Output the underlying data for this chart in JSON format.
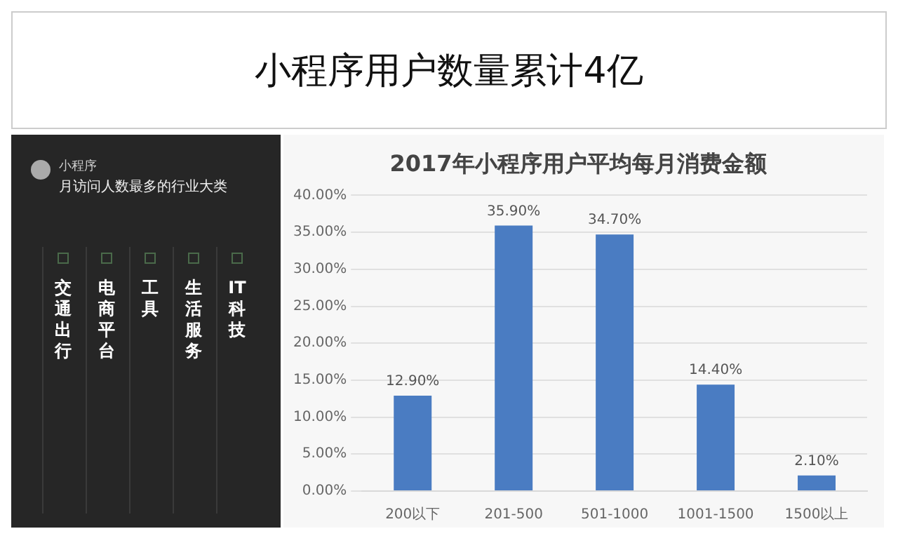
{
  "chart_data": {
    "type": "bar",
    "title": "小程序用户数量累计4亿",
    "subtitle": "2017年小程序用户平均每月消费金额",
    "categories": [
      "200以下",
      "201-500",
      "501-1000",
      "1001-1500",
      "1500以上"
    ],
    "values": [
      12.9,
      35.9,
      34.7,
      14.4,
      2.1
    ],
    "color": "#4a7cc2",
    "value_labels": [
      "12.90%",
      "35.90%",
      "34.70%",
      "14.40%",
      "2.10%"
    ],
    "ylim": [
      0,
      40
    ],
    "yticks": [
      {
        "value": 0,
        "label": "0.00%"
      },
      {
        "value": 5,
        "label": "5.00%"
      },
      {
        "value": 10,
        "label": "10.00%"
      },
      {
        "value": 15,
        "label": "15.00%"
      },
      {
        "value": 20,
        "label": "20.00%"
      },
      {
        "value": 25,
        "label": "25.00%"
      },
      {
        "value": 30,
        "label": "30.00%"
      },
      {
        "value": 35,
        "label": "35.00%"
      },
      {
        "value": 40,
        "label": "40.00%"
      }
    ],
    "grid": "y",
    "legend": false,
    "annotations": [
      "小程序",
      "月访问人数最多的行业大类",
      "交通出行",
      "电商平台",
      "工具",
      "生活服务",
      "IT科技"
    ]
  }
}
